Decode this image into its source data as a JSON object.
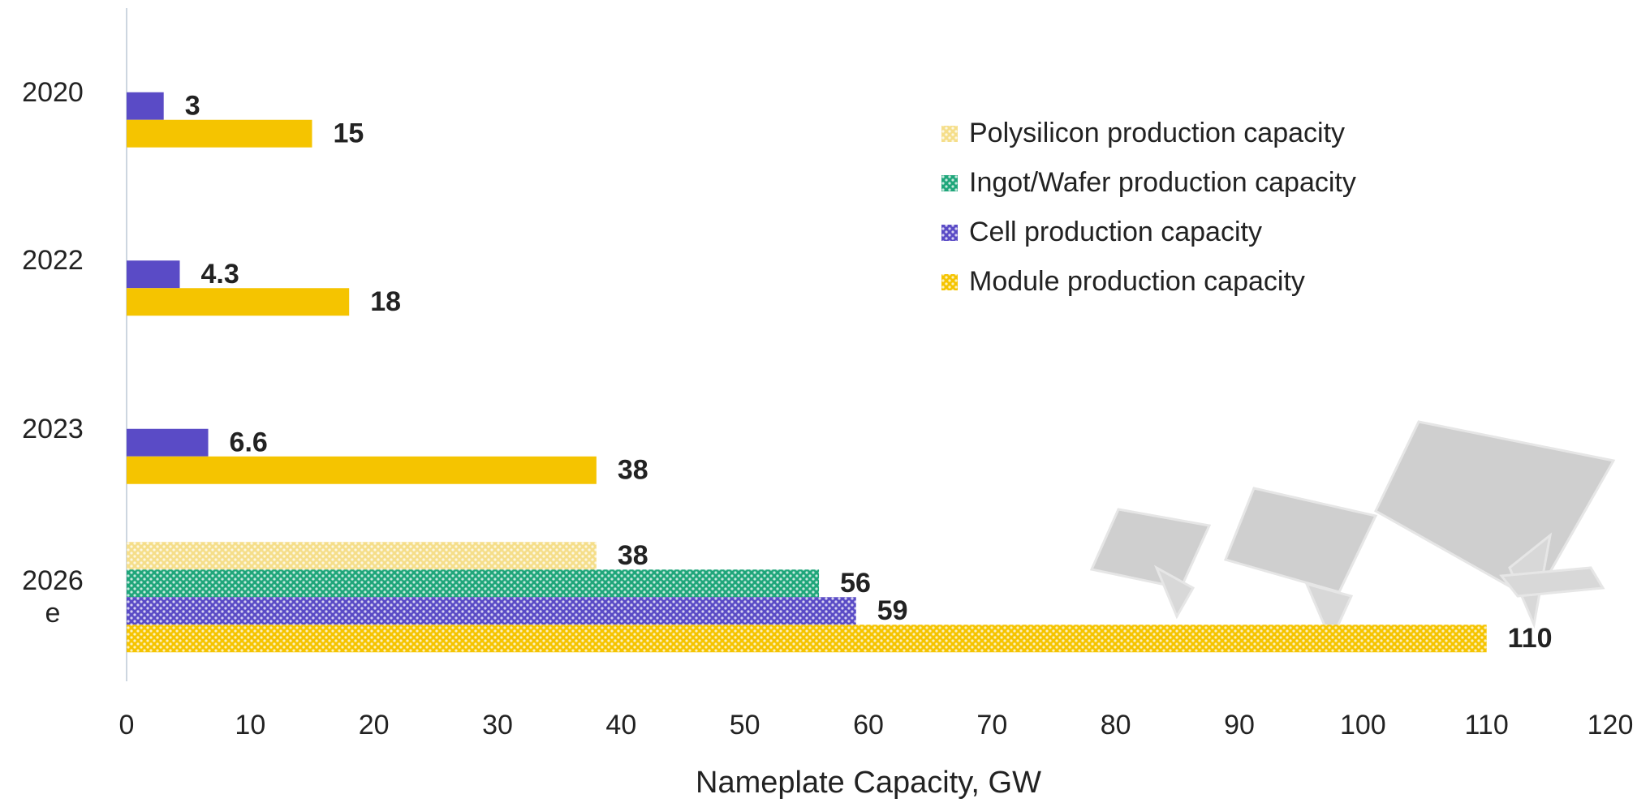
{
  "chart_data": {
    "type": "hbar",
    "x_label": "Nameplate Capacity, GW",
    "categories": [
      "2020",
      "2022",
      "2023",
      "2026 e"
    ],
    "pattern": [
      false,
      false,
      false,
      true
    ],
    "series": [
      {
        "name": "Polysilicon production capacity",
        "color": "#f5de8a",
        "values": [
          null,
          null,
          null,
          38
        ]
      },
      {
        "name": "Ingot/Wafer production capacity",
        "color": "#1fa67a",
        "values": [
          null,
          null,
          null,
          56
        ]
      },
      {
        "name": "Cell production capacity",
        "color": "#5a4bc6",
        "values": [
          3,
          4.3,
          6.6,
          59
        ]
      },
      {
        "name": "Module production capacity",
        "color": "#f5c400",
        "values": [
          15,
          18,
          38,
          110
        ]
      }
    ],
    "xlim": [
      0,
      120
    ],
    "xticks": [
      0,
      10,
      20,
      30,
      40,
      50,
      60,
      70,
      80,
      90,
      100,
      110,
      120
    ],
    "grid": false,
    "legend": "upper right"
  }
}
